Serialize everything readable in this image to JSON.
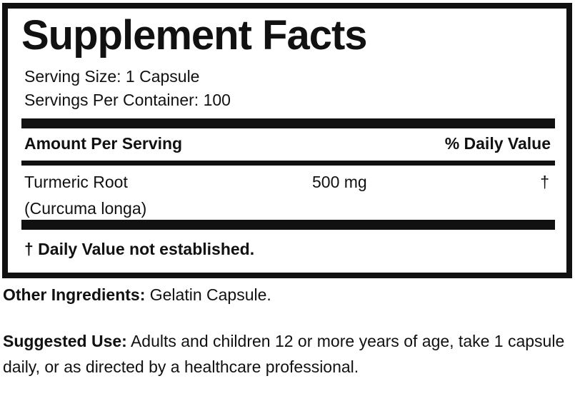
{
  "label": {
    "title": "Supplement Facts",
    "serving_size": "Serving Size: 1 Capsule",
    "servings_per_container": "Servings Per Container: 100",
    "header_amount": "Amount Per Serving",
    "header_dv": "% Daily Value",
    "ingredients": [
      {
        "name": "Turmeric Root",
        "latin": "(Curcuma longa)",
        "amount": "500 mg",
        "dv": "†"
      }
    ],
    "footnote": "† Daily Value not established."
  },
  "other_ingredients": {
    "label": "Other Ingredients:",
    "text": " Gelatin Capsule."
  },
  "suggested_use": {
    "label": "Suggested Use:",
    "text": " Adults and children 12 or more years of age, take 1 capsule daily, or as directed by a healthcare professional."
  }
}
